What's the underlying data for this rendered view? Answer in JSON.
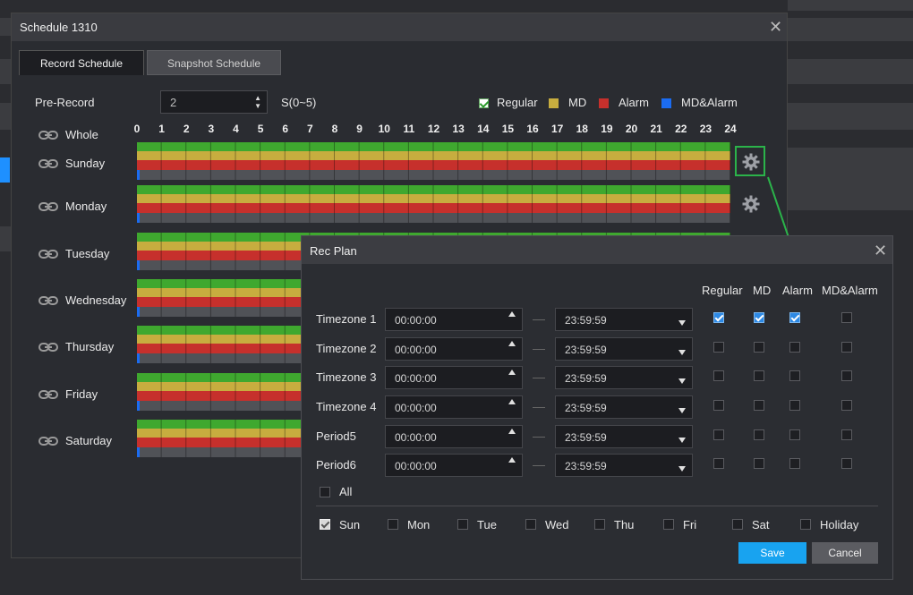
{
  "schedule": {
    "title": "Schedule 1310",
    "tabs": [
      "Record Schedule",
      "Snapshot Schedule"
    ],
    "pre_record": {
      "label": "Pre-Record",
      "value": "2",
      "range": "S(0~5)"
    },
    "legend": [
      {
        "label": "Regular",
        "color": "#3fa82f"
      },
      {
        "label": "MD",
        "color": "#c7ad3f"
      },
      {
        "label": "Alarm",
        "color": "#c6302c"
      },
      {
        "label": "MD&Alarm",
        "color": "#1b6cf2"
      }
    ],
    "hours": [
      "0",
      "1",
      "2",
      "3",
      "4",
      "5",
      "6",
      "7",
      "8",
      "9",
      "10",
      "11",
      "12",
      "13",
      "14",
      "15",
      "16",
      "17",
      "18",
      "19",
      "20",
      "21",
      "22",
      "23",
      "24"
    ],
    "whole_label": "Whole",
    "days": [
      "Sunday",
      "Monday",
      "Tuesday",
      "Wednesday",
      "Thursday",
      "Friday",
      "Saturday"
    ]
  },
  "rec_plan": {
    "title": "Rec Plan",
    "columns": [
      "Regular",
      "MD",
      "Alarm",
      "MD&Alarm"
    ],
    "rows": [
      {
        "label": "Timezone 1",
        "start": "00:00:00",
        "end": "23:59:59",
        "checks": [
          true,
          true,
          true,
          false
        ]
      },
      {
        "label": "Timezone 2",
        "start": "00:00:00",
        "end": "23:59:59",
        "checks": [
          false,
          false,
          false,
          false
        ]
      },
      {
        "label": "Timezone 3",
        "start": "00:00:00",
        "end": "23:59:59",
        "checks": [
          false,
          false,
          false,
          false
        ]
      },
      {
        "label": "Timezone 4",
        "start": "00:00:00",
        "end": "23:59:59",
        "checks": [
          false,
          false,
          false,
          false
        ]
      },
      {
        "label": "Period5",
        "start": "00:00:00",
        "end": "23:59:59",
        "checks": [
          false,
          false,
          false,
          false
        ]
      },
      {
        "label": "Period6",
        "start": "00:00:00",
        "end": "23:59:59",
        "checks": [
          false,
          false,
          false,
          false
        ]
      }
    ],
    "all_label": "All",
    "weekdays": [
      {
        "label": "Sun",
        "checked": true
      },
      {
        "label": "Mon",
        "checked": false
      },
      {
        "label": "Tue",
        "checked": false
      },
      {
        "label": "Wed",
        "checked": false
      },
      {
        "label": "Thu",
        "checked": false
      },
      {
        "label": "Fri",
        "checked": false
      },
      {
        "label": "Sat",
        "checked": false
      },
      {
        "label": "Holiday",
        "checked": false
      }
    ],
    "save_label": "Save",
    "cancel_label": "Cancel"
  },
  "colors": {
    "accent": "#18a3f0",
    "highlight_border": "#2bb34a"
  },
  "icons": {
    "link": "link-icon",
    "gear": "gear-icon",
    "close": "close-icon",
    "arrow": "arrow-annotation-icon"
  }
}
